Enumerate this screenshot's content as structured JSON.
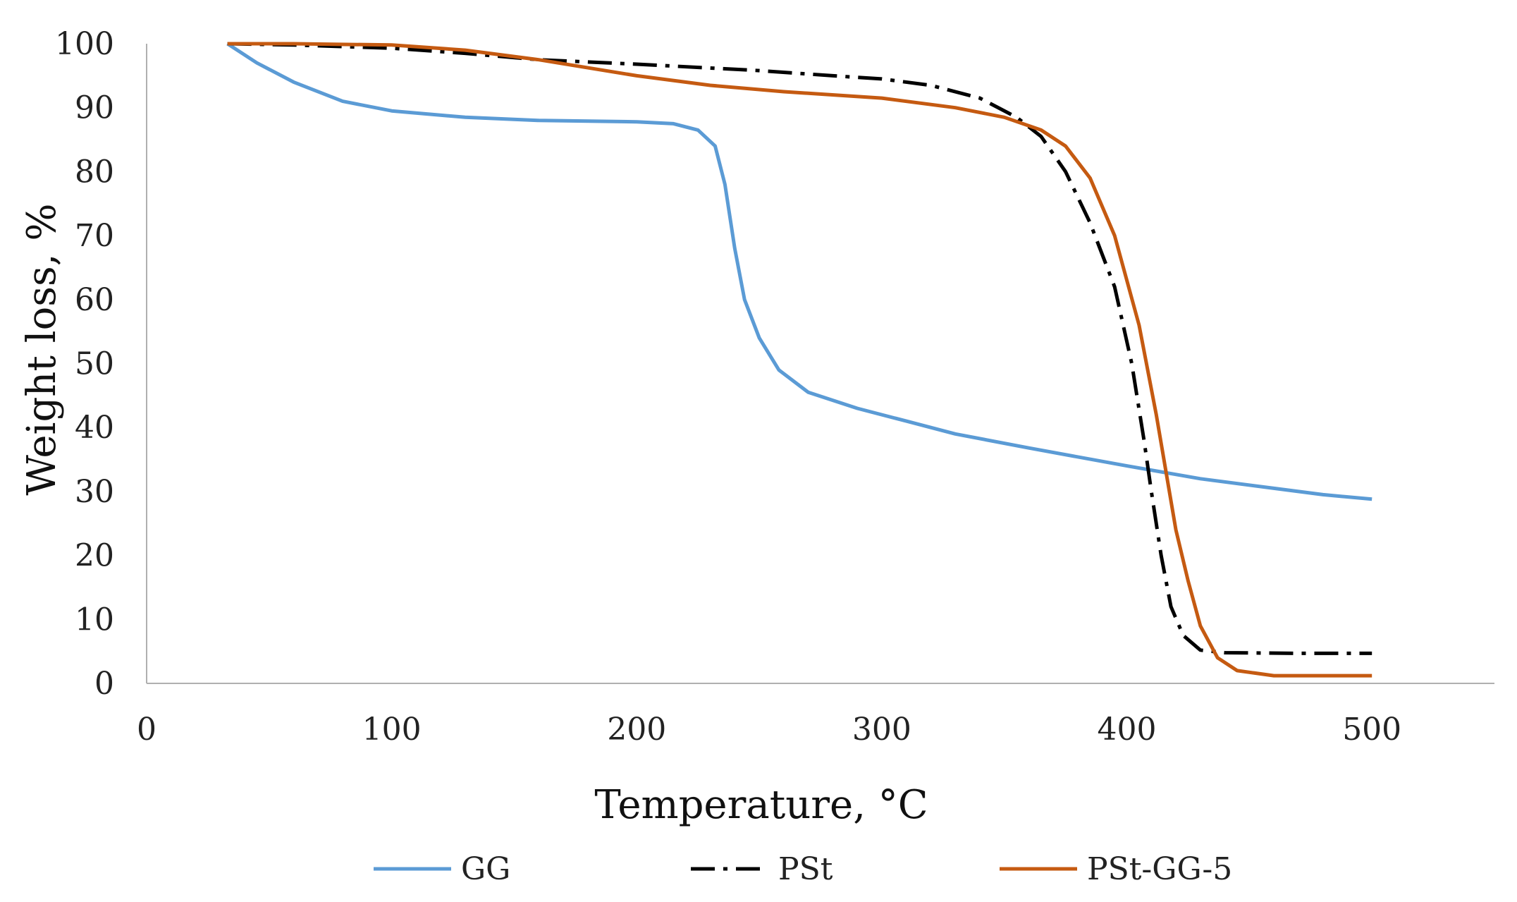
{
  "chart_data": {
    "type": "line",
    "xlabel": "Temperature, °C",
    "ylabel": "Weight loss, %",
    "xlim": [
      0,
      550
    ],
    "ylim": [
      0,
      100
    ],
    "x_ticks": [
      0,
      100,
      200,
      300,
      400,
      500
    ],
    "y_ticks": [
      0,
      10,
      20,
      30,
      40,
      50,
      60,
      70,
      80,
      90,
      100
    ],
    "grid": false,
    "legend_position": "bottom",
    "series": [
      {
        "name": "GG",
        "color": "#5B9BD5",
        "dash": "solid",
        "points": [
          [
            33,
            100
          ],
          [
            45,
            97
          ],
          [
            60,
            94
          ],
          [
            80,
            91
          ],
          [
            100,
            89.5
          ],
          [
            130,
            88.5
          ],
          [
            160,
            88
          ],
          [
            200,
            87.8
          ],
          [
            215,
            87.5
          ],
          [
            225,
            86.5
          ],
          [
            232,
            84
          ],
          [
            236,
            78
          ],
          [
            240,
            68
          ],
          [
            244,
            60
          ],
          [
            250,
            54
          ],
          [
            258,
            49
          ],
          [
            270,
            45.5
          ],
          [
            290,
            43
          ],
          [
            310,
            41
          ],
          [
            330,
            39
          ],
          [
            360,
            36.8
          ],
          [
            400,
            34
          ],
          [
            430,
            32
          ],
          [
            460,
            30.5
          ],
          [
            480,
            29.5
          ],
          [
            500,
            28.8
          ]
        ]
      },
      {
        "name": "PSt",
        "color": "#000000",
        "dash": "dashdot",
        "points": [
          [
            33,
            100
          ],
          [
            60,
            99.8
          ],
          [
            100,
            99.3
          ],
          [
            130,
            98.5
          ],
          [
            160,
            97.5
          ],
          [
            200,
            96.8
          ],
          [
            250,
            95.8
          ],
          [
            280,
            95
          ],
          [
            300,
            94.5
          ],
          [
            320,
            93.5
          ],
          [
            340,
            91.5
          ],
          [
            355,
            88.5
          ],
          [
            365,
            85.5
          ],
          [
            375,
            80
          ],
          [
            385,
            72
          ],
          [
            395,
            62
          ],
          [
            402,
            50
          ],
          [
            407,
            38
          ],
          [
            410,
            30
          ],
          [
            414,
            20
          ],
          [
            418,
            12
          ],
          [
            423,
            7.5
          ],
          [
            430,
            5.2
          ],
          [
            440,
            4.8
          ],
          [
            470,
            4.7
          ],
          [
            500,
            4.7
          ]
        ]
      },
      {
        "name": "PSt-GG-5",
        "color": "#C55A11",
        "dash": "solid",
        "points": [
          [
            33,
            100
          ],
          [
            60,
            100
          ],
          [
            100,
            99.8
          ],
          [
            130,
            99
          ],
          [
            160,
            97.5
          ],
          [
            200,
            95
          ],
          [
            230,
            93.5
          ],
          [
            260,
            92.5
          ],
          [
            300,
            91.5
          ],
          [
            330,
            90
          ],
          [
            350,
            88.5
          ],
          [
            365,
            86.5
          ],
          [
            375,
            84
          ],
          [
            385,
            79
          ],
          [
            395,
            70
          ],
          [
            405,
            56
          ],
          [
            412,
            42
          ],
          [
            416,
            33
          ],
          [
            420,
            24
          ],
          [
            425,
            16
          ],
          [
            430,
            9
          ],
          [
            437,
            4
          ],
          [
            445,
            2
          ],
          [
            460,
            1.2
          ],
          [
            500,
            1.2
          ]
        ]
      }
    ]
  }
}
